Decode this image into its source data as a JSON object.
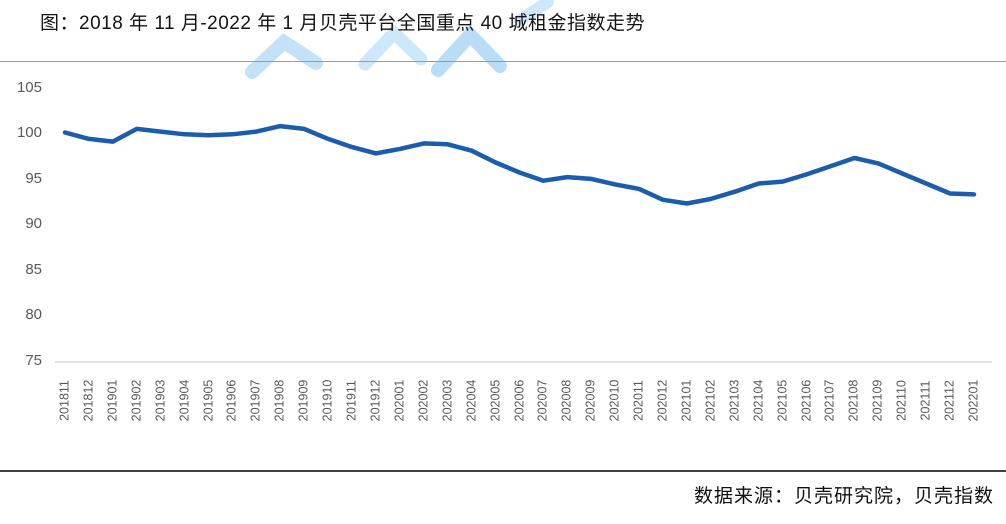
{
  "page": {
    "title": "图：2018 年 11 月-2022 年 1 月贝壳平台全国重点 40 城租金指数走势",
    "footer": "数据来源：贝壳研究院，贝壳指数"
  },
  "chart_data": {
    "type": "line",
    "title": "2018年11月-2022年1月贝壳平台全国重点40城租金指数走势",
    "categories": [
      "201811",
      "201812",
      "201901",
      "201902",
      "201903",
      "201904",
      "201905",
      "201906",
      "201907",
      "201908",
      "201909",
      "201910",
      "201911",
      "201912",
      "202001",
      "202002",
      "202003",
      "202004",
      "202005",
      "202006",
      "202007",
      "202008",
      "202009",
      "202010",
      "202011",
      "202012",
      "202101",
      "202102",
      "202103",
      "202104",
      "202105",
      "202106",
      "202107",
      "202108",
      "202109",
      "202110",
      "202111",
      "202112",
      "202201"
    ],
    "values": [
      100.0,
      99.3,
      99.0,
      100.4,
      100.1,
      99.8,
      99.7,
      99.8,
      100.1,
      100.7,
      100.4,
      99.3,
      98.4,
      97.7,
      98.2,
      98.8,
      98.7,
      98.0,
      96.7,
      95.6,
      94.7,
      95.1,
      94.9,
      94.3,
      93.8,
      92.6,
      92.2,
      92.7,
      93.5,
      94.4,
      94.6,
      95.4,
      96.3,
      97.2,
      96.6,
      95.5,
      94.4,
      93.3,
      93.2
    ],
    "xlabel": "",
    "ylabel": "",
    "ylim": [
      75,
      105
    ],
    "yticks": [
      105,
      100,
      95,
      90,
      85,
      80,
      75
    ],
    "grid": false,
    "legend_position": "none",
    "line_color": "#1b5cad",
    "tick_label_color": "#595959",
    "axis_line_color": "#d9d9d9"
  },
  "watermark_color": "#c3e2f8"
}
